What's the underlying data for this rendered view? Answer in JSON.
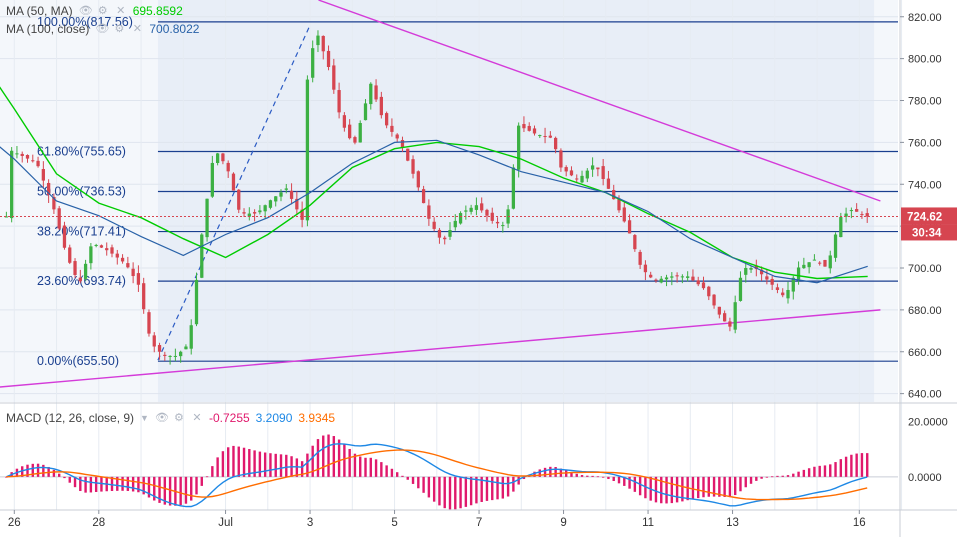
{
  "legend": {
    "ma50": {
      "name": "MA (50, MA)",
      "value": "695.8592",
      "color": "#00cc00"
    },
    "ma100": {
      "name": "MA (100, close)",
      "value": "700.8022",
      "color": "#2962a8"
    },
    "macd": {
      "name": "MACD (12, 26, close, 9)",
      "hist": "-0.7255",
      "macd": "3.2090",
      "signal": "3.9345",
      "hist_color": "#e0196c",
      "macd_color": "#1e88e5",
      "signal_color": "#ff6d00"
    }
  },
  "icons": [
    "eye-icon",
    "gear-icon",
    "close-icon",
    "chevron-down-icon"
  ],
  "price_labels": {
    "last": "724.62",
    "timer": "30:34"
  },
  "colors": {
    "up": "#3cb043",
    "down": "#d64550",
    "fib": "#1a3f8f",
    "trend": "#d43bd9",
    "background": "#e8eef7"
  },
  "chart_data": {
    "type": "candlestick",
    "x_ticks": [
      "26",
      "28",
      "Jul",
      "3",
      "5",
      "7",
      "9",
      "11",
      "13",
      "16"
    ],
    "y_ticks": [
      "640.00",
      "660.00",
      "680.00",
      "700.00",
      "720.00",
      "740.00",
      "760.00",
      "780.00",
      "800.00",
      "820.00"
    ],
    "ylim": [
      636,
      828
    ],
    "macd_ticks": [
      "20.0000",
      "0.0000"
    ],
    "macd_ylim": [
      -12,
      26
    ],
    "fib_levels": [
      {
        "label": "100.00%(817.56)",
        "value": 817.56
      },
      {
        "label": "61.80%(755.65)",
        "value": 755.65
      },
      {
        "label": "50.00%(736.53)",
        "value": 736.53
      },
      {
        "label": "38.20%(717.41)",
        "value": 717.41
      },
      {
        "label": "23.60%(693.74)",
        "value": 693.74
      },
      {
        "label": "0.00%(655.50)",
        "value": 655.5
      }
    ],
    "last_price": 724.62,
    "trendlines": [
      {
        "name": "upper",
        "from": [
          3.2,
          828
        ],
        "to": [
          16.5,
          732
        ]
      },
      {
        "name": "lower",
        "from": [
          25.0,
          642
        ],
        "to": [
          16.5,
          680
        ]
      }
    ],
    "swing_line": {
      "from": [
        29.4,
        656
      ],
      "to": [
        3.0,
        816
      ]
    },
    "ma50": [
      [
        25.0,
        806
      ],
      [
        26,
        776
      ],
      [
        27,
        745
      ],
      [
        28,
        731
      ],
      [
        29,
        724
      ],
      [
        30,
        714
      ],
      [
        1,
        705
      ],
      [
        2,
        716
      ],
      [
        3,
        730
      ],
      [
        4,
        748
      ],
      [
        5,
        757
      ],
      [
        6,
        760
      ],
      [
        7,
        758
      ],
      [
        8,
        752
      ],
      [
        9,
        743
      ],
      [
        10,
        736
      ],
      [
        11,
        726
      ],
      [
        12,
        717
      ],
      [
        13,
        705
      ],
      [
        14,
        698
      ],
      [
        15,
        695
      ],
      [
        16.2,
        696
      ]
    ],
    "ma100": [
      [
        25.0,
        769
      ],
      [
        26,
        752
      ],
      [
        27,
        732
      ],
      [
        28,
        725
      ],
      [
        29,
        715
      ],
      [
        30,
        706
      ],
      [
        1,
        716
      ],
      [
        2,
        724
      ],
      [
        3,
        736
      ],
      [
        4,
        750
      ],
      [
        5,
        760
      ],
      [
        6,
        761
      ],
      [
        7,
        754
      ],
      [
        8,
        746
      ],
      [
        9,
        741
      ],
      [
        10,
        736
      ],
      [
        11,
        727
      ],
      [
        12,
        714
      ],
      [
        13,
        705
      ],
      [
        14,
        696
      ],
      [
        15,
        693
      ],
      [
        16.2,
        700.8
      ]
    ],
    "candles": []
  }
}
